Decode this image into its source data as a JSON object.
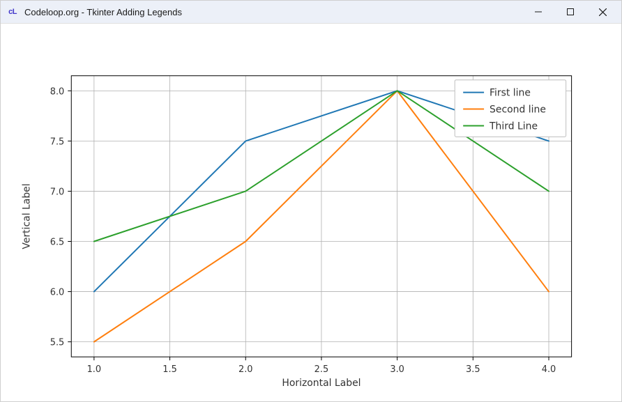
{
  "window": {
    "title": "Codeloop.org - Tkinter Adding Legends",
    "icon_text": "cL"
  },
  "chart": {
    "type": "line",
    "background_color": "#ffffff",
    "grid_color": "#b0b0b0",
    "axis_color": "#000000",
    "xlabel": "Horizontal Label",
    "ylabel": "Vertical Label",
    "label_fontsize": 14,
    "tick_fontsize": 13,
    "xlim": [
      0.85,
      4.15
    ],
    "ylim": [
      5.35,
      8.15
    ],
    "xticks": [
      1.0,
      1.5,
      2.0,
      2.5,
      3.0,
      3.5,
      4.0
    ],
    "xtick_labels": [
      "1.0",
      "1.5",
      "2.0",
      "2.5",
      "3.0",
      "3.5",
      "4.0"
    ],
    "yticks": [
      5.5,
      6.0,
      6.5,
      7.0,
      7.5,
      8.0
    ],
    "ytick_labels": [
      "5.5",
      "6.0",
      "6.5",
      "7.0",
      "7.5",
      "8.0"
    ],
    "line_width": 2,
    "series": [
      {
        "label": "First line",
        "color": "#1f77b4",
        "x": [
          1,
          2,
          3,
          4
        ],
        "y": [
          6.0,
          7.5,
          8.0,
          7.5
        ]
      },
      {
        "label": "Second line",
        "color": "#ff7f0e",
        "x": [
          1,
          2,
          3,
          4
        ],
        "y": [
          5.5,
          6.5,
          8.0,
          6.0
        ]
      },
      {
        "label": "Third Line",
        "color": "#2ca02c",
        "x": [
          1,
          2,
          3,
          4
        ],
        "y": [
          6.5,
          7.0,
          8.0,
          7.0
        ]
      }
    ],
    "legend": {
      "position": "upper-right",
      "border_color": "#bfbfbf",
      "background_color": "#ffffff",
      "fontsize": 14
    }
  }
}
